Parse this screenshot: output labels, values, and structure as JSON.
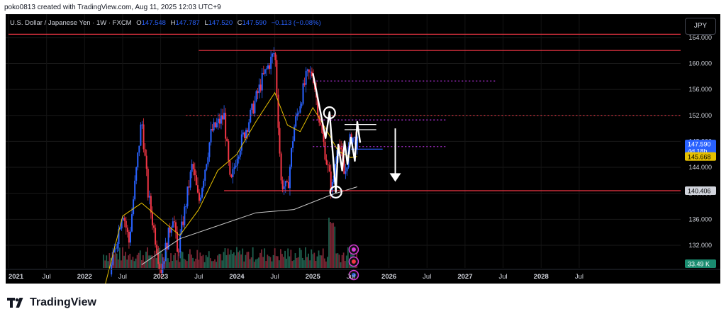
{
  "header": {
    "created_text": "poko0813 created with TradingView.com, Aug 11, 2025 12:03 UTC+9"
  },
  "legend": {
    "symbol": "U.S. Dollar / Japanese Yen · 1W · FXCM",
    "o_label": "O",
    "o_value": "147.548",
    "h_label": "H",
    "h_value": "147.787",
    "l_label": "L",
    "l_value": "147.520",
    "c_label": "C",
    "c_value": "147.590",
    "change": "−0.113 (−0.08%)"
  },
  "currency_button": "JPY",
  "footer": {
    "brand": "TradingView"
  },
  "colors": {
    "bull": "#2962ff",
    "bear": "#f23645",
    "ma_fast": "#e6c000",
    "ma_slow": "#c8c8c8",
    "level": "#f23645",
    "pattern": "#ffffff",
    "dotted": "#b030d8"
  },
  "chart_data": {
    "type": "candlestick",
    "symbol": "USDJPY",
    "timeframe": "1W",
    "ylim": [
      128.5,
      166.5
    ],
    "x_range": [
      "2021-01",
      "2028-12"
    ],
    "price_ticks": [
      "164.000",
      "160.000",
      "156.000",
      "152.000",
      "148.000",
      "144.000",
      "140.000",
      "136.000",
      "132.000"
    ],
    "time_ticks": [
      "2021",
      "Jul",
      "2022",
      "Jul",
      "2023",
      "Jul",
      "2024",
      "Jul",
      "2025",
      "Jul",
      "2026",
      "Jul",
      "2027",
      "Jul",
      "2028",
      "Jul"
    ],
    "price_labels": [
      {
        "value": 147.59,
        "text": "147.590",
        "subtext": "4d 18h",
        "kind": "last"
      },
      {
        "value": 145.668,
        "text": "145.668",
        "kind": "ma"
      },
      {
        "value": 140.406,
        "text": "140.406",
        "kind": "level"
      }
    ],
    "volume_label": "33.49 K",
    "price_path": [
      [
        "2022-05",
        127.5
      ],
      [
        "2022-07",
        137.5
      ],
      [
        "2022-08",
        132.5
      ],
      [
        "2022-10",
        151.5
      ],
      [
        "2022-11",
        140.0
      ],
      [
        "2023-01",
        128.0
      ],
      [
        "2023-03",
        137.0
      ],
      [
        "2023-03-20",
        130.5
      ],
      [
        "2023-06",
        144.5
      ],
      [
        "2023-07",
        138.5
      ],
      [
        "2023-09",
        149.5
      ],
      [
        "2023-11",
        151.9
      ],
      [
        "2023-12",
        141.0
      ],
      [
        "2024-01",
        146.0
      ],
      [
        "2024-03",
        151.5
      ],
      [
        "2024-05",
        157.5
      ],
      [
        "2024-07",
        161.9
      ],
      [
        "2024-08",
        141.7
      ],
      [
        "2024-09",
        140.5
      ],
      [
        "2024-10",
        150.0
      ],
      [
        "2024-12",
        158.0
      ],
      [
        "2025-01",
        158.5
      ],
      [
        "2025-02",
        151.5
      ],
      [
        "2025-04",
        140.3
      ],
      [
        "2025-05",
        148.5
      ],
      [
        "2025-06",
        142.5
      ],
      [
        "2025-07",
        149.0
      ],
      [
        "2025-08",
        147.59
      ]
    ],
    "ma_fast": [
      [
        "2022-04",
        125.0
      ],
      [
        "2022-07",
        136.5
      ],
      [
        "2022-10",
        138.5
      ],
      [
        "2023-01",
        136.0
      ],
      [
        "2023-04",
        133.5
      ],
      [
        "2023-07",
        137.5
      ],
      [
        "2023-10",
        143.5
      ],
      [
        "2024-01",
        146.0
      ],
      [
        "2024-04",
        151.0
      ],
      [
        "2024-07",
        155.5
      ],
      [
        "2024-09",
        150.5
      ],
      [
        "2024-11",
        149.5
      ],
      [
        "2025-01",
        153.2
      ],
      [
        "2025-03",
        150.0
      ],
      [
        "2025-05",
        146.5
      ],
      [
        "2025-07",
        145.5
      ],
      [
        "2025-08",
        145.668
      ]
    ],
    "ma_slow": [
      [
        "2022-10",
        129.0
      ],
      [
        "2023-04",
        133.0
      ],
      [
        "2023-10",
        135.0
      ],
      [
        "2024-04",
        137.0
      ],
      [
        "2024-10",
        137.5
      ],
      [
        "2025-04",
        139.8
      ],
      [
        "2025-08",
        141.0
      ]
    ],
    "levels": [
      {
        "value": 164.5,
        "from": "2021-01",
        "to": "2028-12",
        "style": "solid"
      },
      {
        "value": 162.0,
        "from": "2023-07",
        "to": "2028-12",
        "style": "solid"
      },
      {
        "value": 152.0,
        "from": "2023-05",
        "to": "2028-12",
        "style": "dashed"
      },
      {
        "value": 140.406,
        "from": "2023-11",
        "to": "2028-12",
        "style": "solid"
      }
    ],
    "annotations": {
      "pattern_points": [
        [
          "2025-01",
          158.5
        ],
        [
          "2025-03",
          148.5
        ],
        [
          "2025-03-20",
          152.5
        ],
        [
          "2025-04-20",
          140.2
        ],
        [
          "2025-05",
          147.5
        ],
        [
          "2025-05-20",
          143.5
        ],
        [
          "2025-06",
          148.0
        ],
        [
          "2025-06-15",
          144.5
        ],
        [
          "2025-07",
          148.6
        ],
        [
          "2025-07-20",
          145.0
        ],
        [
          "2025-08",
          151.0
        ],
        [
          "2025-08-15",
          147.8
        ]
      ],
      "circles": [
        [
          "2025-03-20",
          152.4
        ],
        [
          "2025-04-20",
          140.2
        ]
      ],
      "dotted_levels": [
        {
          "value": 157.3,
          "from": "2025-01",
          "to": "2027-06"
        },
        {
          "value": 151.3,
          "from": "2025-01",
          "to": "2026-10"
        },
        {
          "value": 147.2,
          "from": "2025-01",
          "to": "2026-10"
        }
      ],
      "short_lines": [
        {
          "value": 150.6,
          "from": "2025-06",
          "to": "2025-11"
        },
        {
          "value": 149.8,
          "from": "2025-06",
          "to": "2025-11"
        },
        {
          "value": 146.8,
          "from": "2025-07",
          "to": "2025-12"
        }
      ],
      "arrow": {
        "x": "2026-02",
        "from": 150.0,
        "to": 142.0
      }
    },
    "event_icons": [
      "flash",
      "japan-flag",
      "us-flag"
    ]
  }
}
